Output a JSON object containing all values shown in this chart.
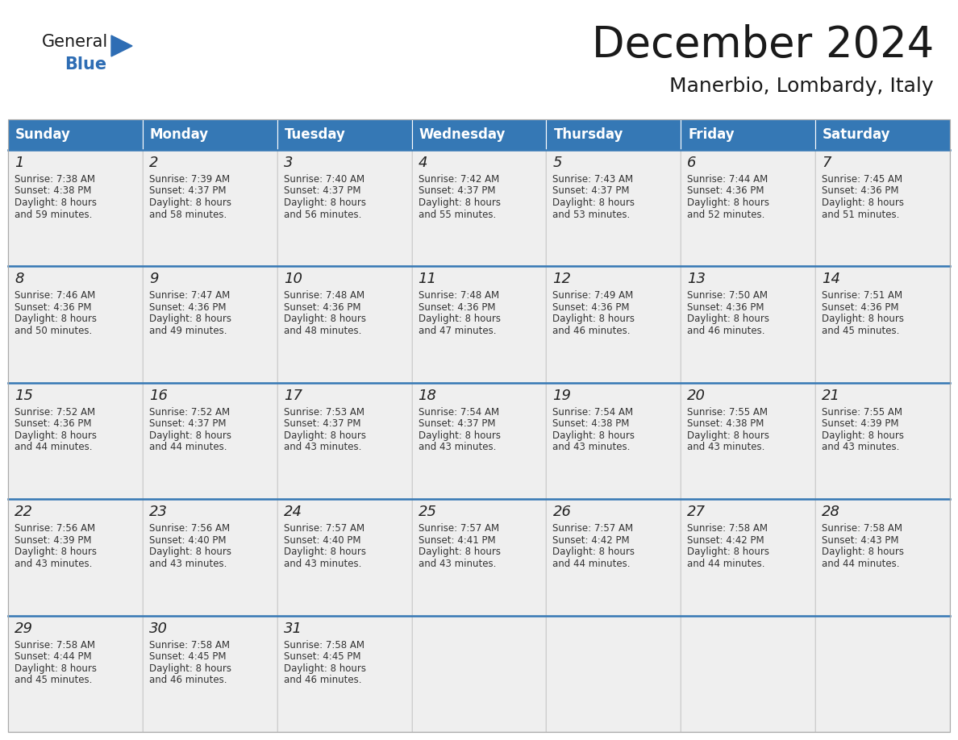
{
  "title": "December 2024",
  "subtitle": "Manerbio, Lombardy, Italy",
  "header_bg_color": "#3578b5",
  "header_text_color": "#ffffff",
  "day_names": [
    "Sunday",
    "Monday",
    "Tuesday",
    "Wednesday",
    "Thursday",
    "Friday",
    "Saturday"
  ],
  "cell_bg_color": "#efefef",
  "divider_color": "#3578b5",
  "text_color": "#333333",
  "date_font_size": 13,
  "info_font_size": 8.5,
  "header_font_size": 12,
  "logo_general_color": "#1a1a1a",
  "logo_blue_color": "#2e6db4",
  "weeks": [
    [
      {
        "day": 1,
        "sunrise": "7:38 AM",
        "sunset": "4:38 PM",
        "daylight": "8 hours and 59 minutes"
      },
      {
        "day": 2,
        "sunrise": "7:39 AM",
        "sunset": "4:37 PM",
        "daylight": "8 hours and 58 minutes"
      },
      {
        "day": 3,
        "sunrise": "7:40 AM",
        "sunset": "4:37 PM",
        "daylight": "8 hours and 56 minutes"
      },
      {
        "day": 4,
        "sunrise": "7:42 AM",
        "sunset": "4:37 PM",
        "daylight": "8 hours and 55 minutes"
      },
      {
        "day": 5,
        "sunrise": "7:43 AM",
        "sunset": "4:37 PM",
        "daylight": "8 hours and 53 minutes"
      },
      {
        "day": 6,
        "sunrise": "7:44 AM",
        "sunset": "4:36 PM",
        "daylight": "8 hours and 52 minutes"
      },
      {
        "day": 7,
        "sunrise": "7:45 AM",
        "sunset": "4:36 PM",
        "daylight": "8 hours and 51 minutes"
      }
    ],
    [
      {
        "day": 8,
        "sunrise": "7:46 AM",
        "sunset": "4:36 PM",
        "daylight": "8 hours and 50 minutes"
      },
      {
        "day": 9,
        "sunrise": "7:47 AM",
        "sunset": "4:36 PM",
        "daylight": "8 hours and 49 minutes"
      },
      {
        "day": 10,
        "sunrise": "7:48 AM",
        "sunset": "4:36 PM",
        "daylight": "8 hours and 48 minutes"
      },
      {
        "day": 11,
        "sunrise": "7:48 AM",
        "sunset": "4:36 PM",
        "daylight": "8 hours and 47 minutes"
      },
      {
        "day": 12,
        "sunrise": "7:49 AM",
        "sunset": "4:36 PM",
        "daylight": "8 hours and 46 minutes"
      },
      {
        "day": 13,
        "sunrise": "7:50 AM",
        "sunset": "4:36 PM",
        "daylight": "8 hours and 46 minutes"
      },
      {
        "day": 14,
        "sunrise": "7:51 AM",
        "sunset": "4:36 PM",
        "daylight": "8 hours and 45 minutes"
      }
    ],
    [
      {
        "day": 15,
        "sunrise": "7:52 AM",
        "sunset": "4:36 PM",
        "daylight": "8 hours and 44 minutes"
      },
      {
        "day": 16,
        "sunrise": "7:52 AM",
        "sunset": "4:37 PM",
        "daylight": "8 hours and 44 minutes"
      },
      {
        "day": 17,
        "sunrise": "7:53 AM",
        "sunset": "4:37 PM",
        "daylight": "8 hours and 43 minutes"
      },
      {
        "day": 18,
        "sunrise": "7:54 AM",
        "sunset": "4:37 PM",
        "daylight": "8 hours and 43 minutes"
      },
      {
        "day": 19,
        "sunrise": "7:54 AM",
        "sunset": "4:38 PM",
        "daylight": "8 hours and 43 minutes"
      },
      {
        "day": 20,
        "sunrise": "7:55 AM",
        "sunset": "4:38 PM",
        "daylight": "8 hours and 43 minutes"
      },
      {
        "day": 21,
        "sunrise": "7:55 AM",
        "sunset": "4:39 PM",
        "daylight": "8 hours and 43 minutes"
      }
    ],
    [
      {
        "day": 22,
        "sunrise": "7:56 AM",
        "sunset": "4:39 PM",
        "daylight": "8 hours and 43 minutes"
      },
      {
        "day": 23,
        "sunrise": "7:56 AM",
        "sunset": "4:40 PM",
        "daylight": "8 hours and 43 minutes"
      },
      {
        "day": 24,
        "sunrise": "7:57 AM",
        "sunset": "4:40 PM",
        "daylight": "8 hours and 43 minutes"
      },
      {
        "day": 25,
        "sunrise": "7:57 AM",
        "sunset": "4:41 PM",
        "daylight": "8 hours and 43 minutes"
      },
      {
        "day": 26,
        "sunrise": "7:57 AM",
        "sunset": "4:42 PM",
        "daylight": "8 hours and 44 minutes"
      },
      {
        "day": 27,
        "sunrise": "7:58 AM",
        "sunset": "4:42 PM",
        "daylight": "8 hours and 44 minutes"
      },
      {
        "day": 28,
        "sunrise": "7:58 AM",
        "sunset": "4:43 PM",
        "daylight": "8 hours and 44 minutes"
      }
    ],
    [
      {
        "day": 29,
        "sunrise": "7:58 AM",
        "sunset": "4:44 PM",
        "daylight": "8 hours and 45 minutes"
      },
      {
        "day": 30,
        "sunrise": "7:58 AM",
        "sunset": "4:45 PM",
        "daylight": "8 hours and 46 minutes"
      },
      {
        "day": 31,
        "sunrise": "7:58 AM",
        "sunset": "4:45 PM",
        "daylight": "8 hours and 46 minutes"
      },
      null,
      null,
      null,
      null
    ]
  ]
}
